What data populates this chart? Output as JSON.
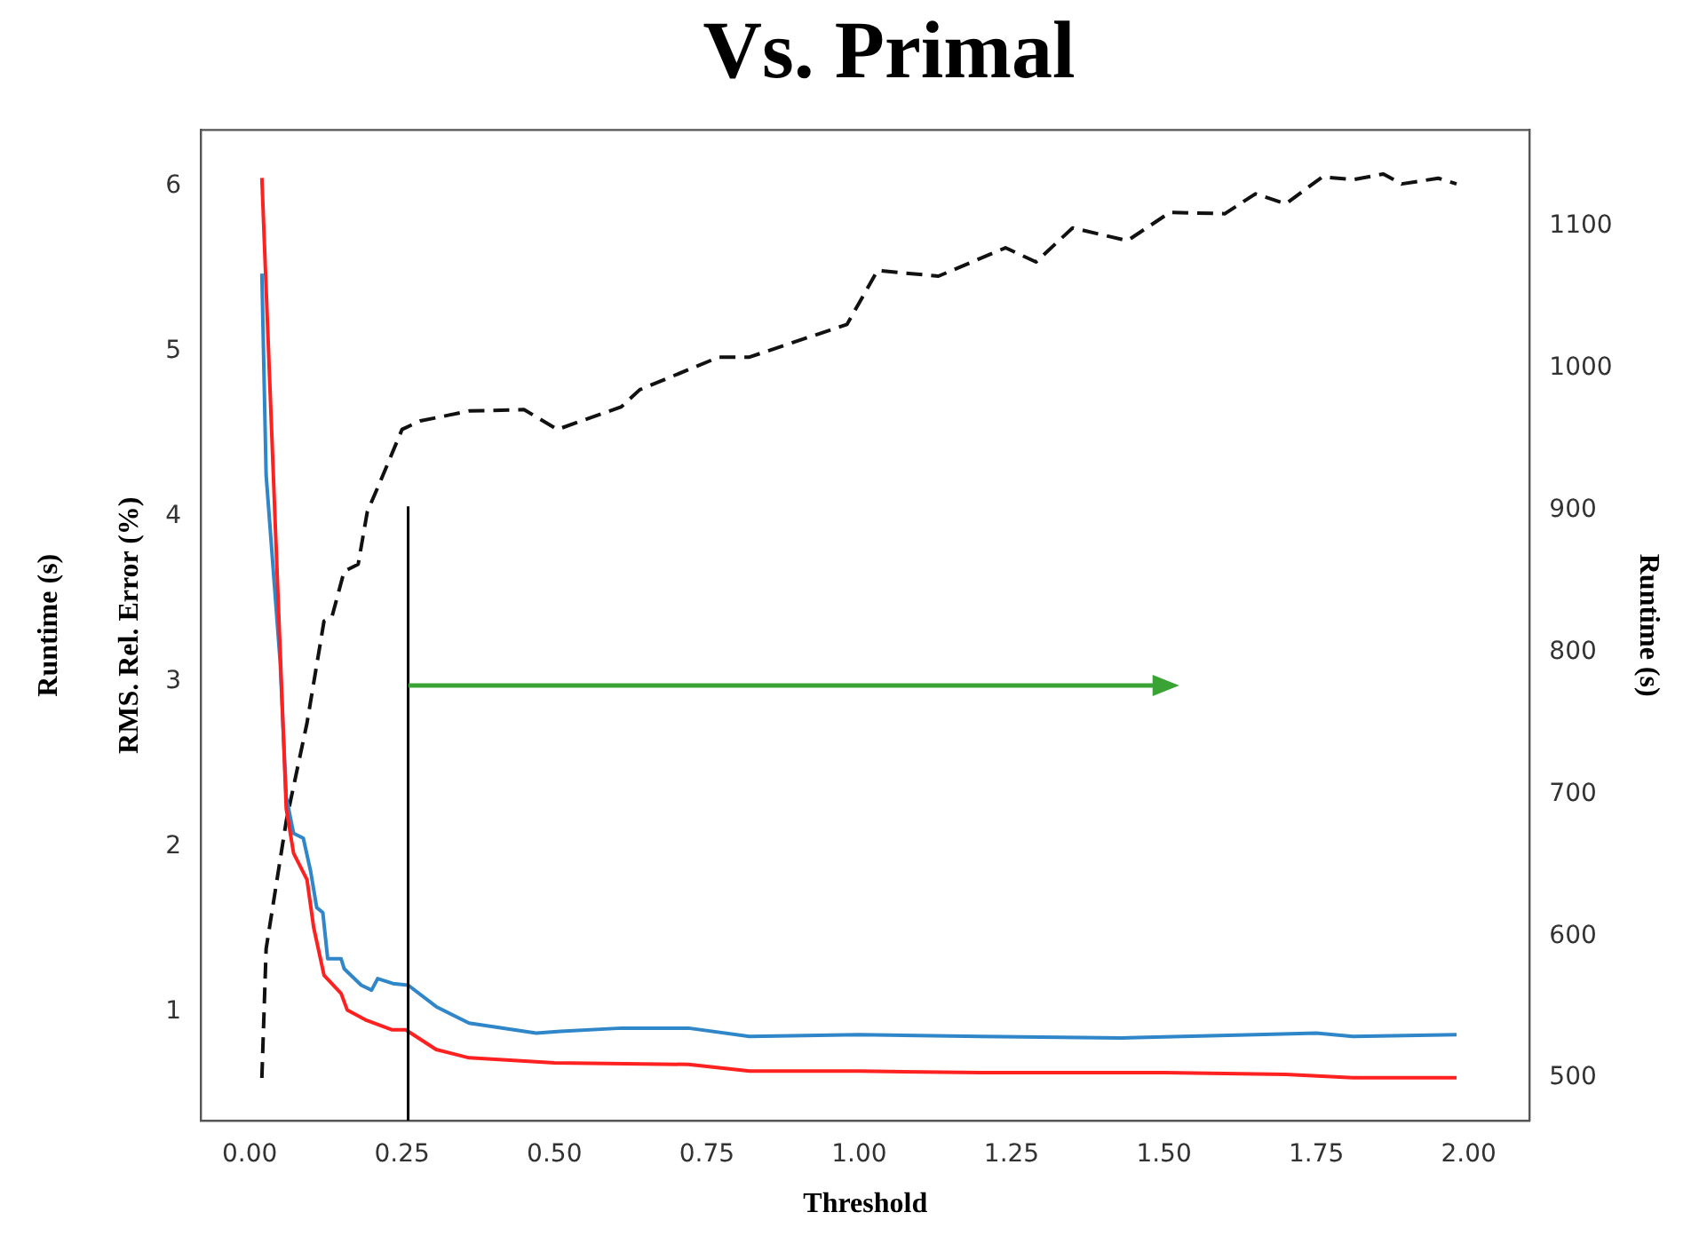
{
  "chart_data": {
    "type": "line",
    "title": "Vs. Primal",
    "xlabel": "Threshold",
    "ylabel": "RMS. Rel. Error (%)",
    "y2label": "Runtime (s)",
    "annotations": [
      "Runtime (s)"
    ],
    "xlim": [
      -0.08,
      2.1
    ],
    "xticks": [
      {
        "value": 0,
        "label": "0.00"
      },
      {
        "value": 0.25,
        "label": "0.25"
      },
      {
        "value": 0.5,
        "label": "0.50"
      },
      {
        "value": 0.75,
        "label": "0.75"
      },
      {
        "value": 1,
        "label": "1.00"
      },
      {
        "value": 1.25,
        "label": "1.25"
      },
      {
        "value": 1.5,
        "label": "1.50"
      },
      {
        "value": 1.75,
        "label": "1.75"
      },
      {
        "value": 2,
        "label": "2.00"
      }
    ],
    "ylim": [
      0.34,
      6.34
    ],
    "yticks": [
      1,
      2,
      3,
      4,
      5,
      6
    ],
    "y2lim": [
      470,
      1168
    ],
    "y2ticks": [
      500,
      600,
      700,
      800,
      900,
      1000,
      1100
    ],
    "grid": false,
    "legend": false,
    "marker": "none",
    "ref_lines": [
      {
        "axis": "x",
        "value": 0.26,
        "color": "#000000"
      }
    ],
    "series": [
      {
        "color": "#ff2020",
        "line_style": "solid",
        "x": [
          0.02,
          0.06,
          0.072,
          0.094,
          0.105,
          0.122,
          0.15,
          0.16,
          0.19,
          0.233,
          0.256,
          0.306,
          0.36,
          0.5,
          0.72,
          0.82,
          1.0,
          1.2,
          1.5,
          1.7,
          1.81,
          1.98
        ],
        "values": [
          6.05,
          2.23,
          1.96,
          1.8,
          1.51,
          1.22,
          1.11,
          1.01,
          0.95,
          0.89,
          0.89,
          0.77,
          0.72,
          0.69,
          0.68,
          0.64,
          0.64,
          0.63,
          0.63,
          0.62,
          0.6,
          0.6
        ]
      },
      {
        "color": "#2f86c8",
        "line_style": "solid",
        "x": [
          0.02,
          0.027,
          0.05,
          0.06,
          0.072,
          0.088,
          0.1,
          0.11,
          0.12,
          0.128,
          0.15,
          0.155,
          0.183,
          0.2,
          0.21,
          0.235,
          0.26,
          0.306,
          0.36,
          0.47,
          0.51,
          0.61,
          0.72,
          0.82,
          1.0,
          1.2,
          1.43,
          1.65,
          1.75,
          1.81,
          1.98
        ],
        "values": [
          5.47,
          4.25,
          3.12,
          2.3,
          2.08,
          2.05,
          1.85,
          1.63,
          1.6,
          1.32,
          1.32,
          1.26,
          1.16,
          1.13,
          1.2,
          1.17,
          1.16,
          1.03,
          0.93,
          0.87,
          0.88,
          0.9,
          0.9,
          0.85,
          0.86,
          0.85,
          0.84,
          0.86,
          0.87,
          0.85,
          0.86
        ]
      },
      {
        "color": "#111111",
        "line_style": "dashed",
        "axis": "y2",
        "x": [
          0.02,
          0.027,
          0.06,
          0.094,
          0.122,
          0.135,
          0.155,
          0.178,
          0.193,
          0.215,
          0.25,
          0.28,
          0.36,
          0.45,
          0.505,
          0.61,
          0.64,
          0.77,
          0.82,
          0.98,
          1.03,
          1.13,
          1.24,
          1.29,
          1.35,
          1.44,
          1.51,
          1.6,
          1.65,
          1.7,
          1.76,
          1.81,
          1.86,
          1.89,
          1.95,
          1.98
        ],
        "values": [
          500,
          591,
          681,
          750,
          822,
          825,
          857,
          862,
          899,
          921,
          957,
          963,
          970,
          971,
          957,
          973,
          985,
          1008,
          1008,
          1031,
          1069,
          1065,
          1085,
          1075,
          1099,
          1090,
          1110,
          1109,
          1123,
          1116,
          1135,
          1133,
          1137,
          1130,
          1134,
          1130
        ]
      }
    ]
  }
}
